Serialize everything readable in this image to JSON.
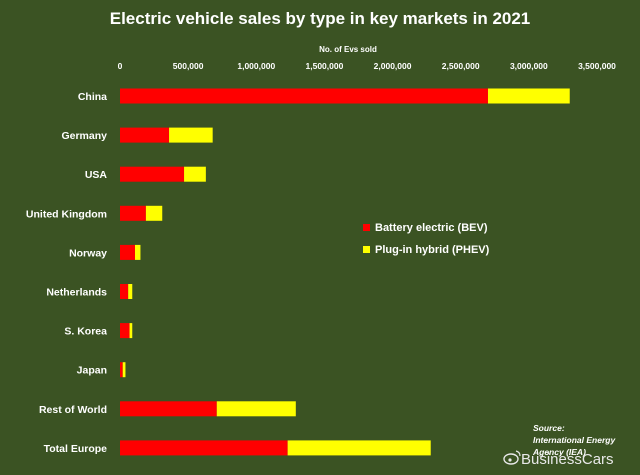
{
  "chart_data": {
    "type": "bar",
    "orientation": "horizontal",
    "stacked": true,
    "title": "Electric vehicle sales by type in key markets in 2021",
    "xlabel": "No. of Evs sold",
    "xlim": [
      0,
      3500000
    ],
    "xticks": [
      "0",
      "500,000",
      "1,000,000",
      "1,500,000",
      "2,000,000",
      "2,500,000",
      "3,000,000",
      "3,500,000"
    ],
    "xtick_values": [
      0,
      500000,
      1000000,
      1500000,
      2000000,
      2500000,
      3000000,
      3500000
    ],
    "x_axis_position": "top",
    "grid": false,
    "legend_position": "right-center",
    "categories": [
      "China",
      "Germany",
      "USA",
      "United Kingdom",
      "Norway",
      "Netherlands",
      "S. Korea",
      "Japan",
      "Rest of World",
      "Total Europe"
    ],
    "series": [
      {
        "name": "Battery electric (BEV)",
        "color": "#ff0000",
        "values": [
          2700000,
          360000,
          470000,
          190000,
          110000,
          60000,
          70000,
          20000,
          710000,
          1230000
        ]
      },
      {
        "name": "Plug-in hybrid (PHEV)",
        "color": "#ffff00",
        "values": [
          600000,
          320000,
          160000,
          120000,
          40000,
          30000,
          20000,
          20000,
          580000,
          1050000
        ]
      }
    ]
  },
  "source_lines": [
    "Source:",
    "International Energy",
    "Agency (IEA)"
  ],
  "watermark": "BusinessCars",
  "colors": {
    "background": "#3b5323",
    "text": "#ffffff"
  }
}
